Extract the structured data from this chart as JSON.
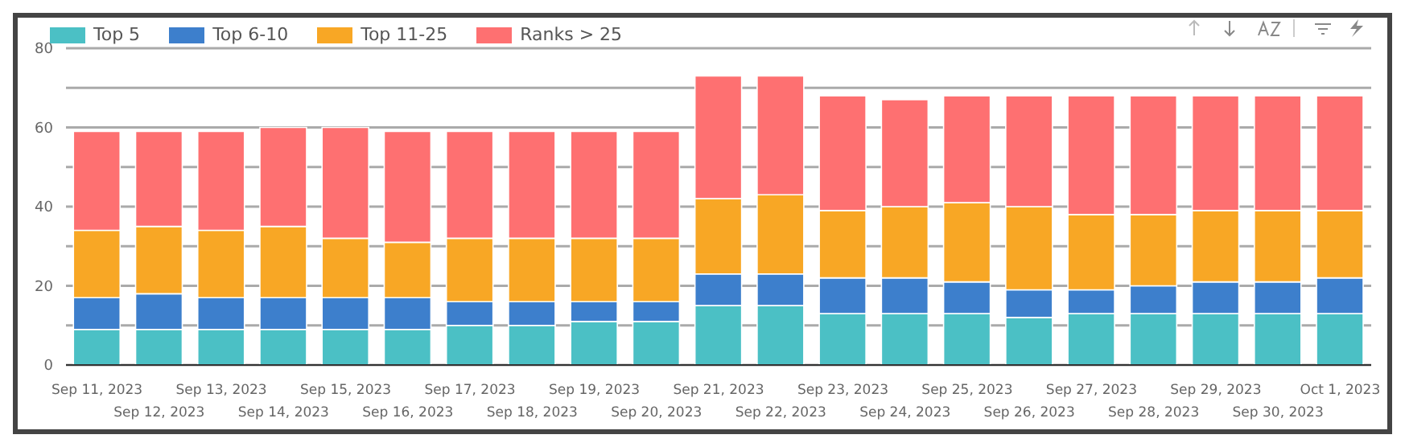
{
  "chart_data": {
    "type": "bar",
    "stacked": true,
    "categories": [
      "Sep 11, 2023",
      "Sep 12, 2023",
      "Sep 13, 2023",
      "Sep 14, 2023",
      "Sep 15, 2023",
      "Sep 16, 2023",
      "Sep 17, 2023",
      "Sep 18, 2023",
      "Sep 19, 2023",
      "Sep 20, 2023",
      "Sep 21, 2023",
      "Sep 22, 2023",
      "Sep 23, 2023",
      "Sep 24, 2023",
      "Sep 25, 2023",
      "Sep 26, 2023",
      "Sep 27, 2023",
      "Sep 28, 2023",
      "Sep 29, 2023",
      "Sep 30, 2023",
      "Oct 1, 2023"
    ],
    "series": [
      {
        "name": "Top 5",
        "color": "#4bc0c5",
        "values": [
          9,
          9,
          9,
          9,
          9,
          9,
          10,
          10,
          11,
          11,
          15,
          15,
          13,
          13,
          13,
          12,
          13,
          13,
          13,
          13,
          13
        ]
      },
      {
        "name": "Top 6-10",
        "color": "#3d7fcc",
        "values": [
          8,
          9,
          8,
          8,
          8,
          8,
          6,
          6,
          5,
          5,
          8,
          8,
          9,
          9,
          8,
          7,
          6,
          7,
          8,
          8,
          9
        ]
      },
      {
        "name": "Top 11-25",
        "color": "#f8a725",
        "values": [
          17,
          17,
          17,
          18,
          15,
          14,
          16,
          16,
          16,
          16,
          19,
          20,
          17,
          18,
          20,
          21,
          19,
          18,
          18,
          18,
          17
        ]
      },
      {
        "name": "Ranks > 25",
        "color": "#fe7071",
        "values": [
          25,
          24,
          25,
          25,
          28,
          28,
          27,
          27,
          27,
          27,
          31,
          30,
          29,
          27,
          27,
          28,
          30,
          30,
          29,
          29,
          29
        ]
      }
    ],
    "ylim": [
      0,
      80
    ],
    "yticks": [
      0,
      {
        "value": 10,
        "label": null
      },
      20,
      {
        "value": 30,
        "label": null
      },
      40,
      {
        "value": 50,
        "label": null
      },
      60,
      {
        "value": 70,
        "label": null
      },
      80
    ],
    "grid": "y",
    "legend": "top left"
  }
}
